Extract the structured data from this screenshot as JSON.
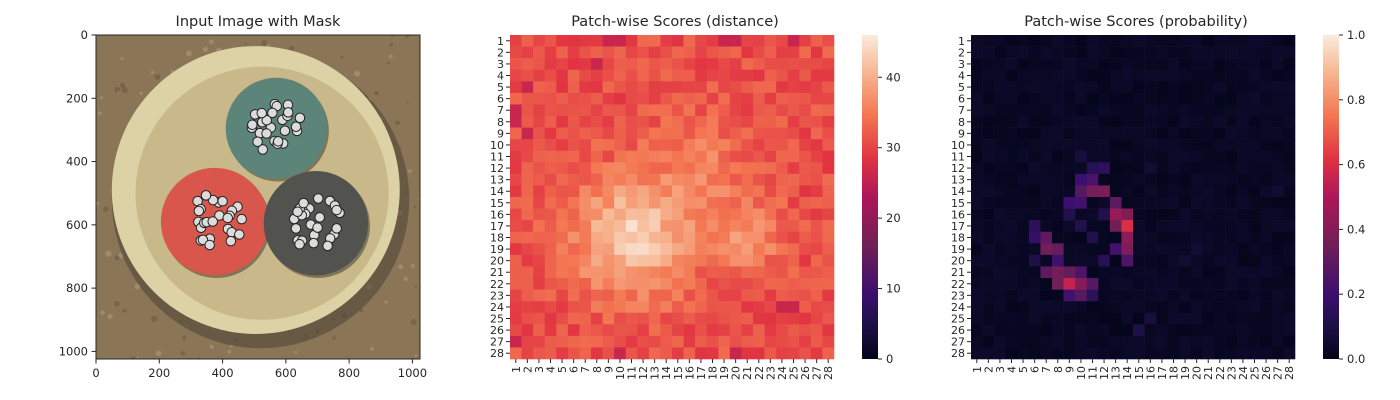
{
  "chart_data": [
    {
      "type": "image",
      "title": "Input Image with Mask",
      "xticks": [
        "0",
        "200",
        "400",
        "600",
        "800",
        "1000"
      ],
      "yticks": [
        "0",
        "200",
        "400",
        "600",
        "800",
        "1000"
      ],
      "xlim": [
        0,
        1024
      ],
      "ylim": [
        1024,
        0
      ],
      "image": {
        "background_color": "#8a7657",
        "dish_color": "#ddd2a5",
        "inner_disc_color": "#c9b98a",
        "cables": [
          {
            "name": "green",
            "color": "#5d8478",
            "cx": 570,
            "cy": 295,
            "r": 160
          },
          {
            "name": "red",
            "color": "#d9564c",
            "cx": 375,
            "cy": 590,
            "r": 170
          },
          {
            "name": "gray",
            "color": "#52534f",
            "cx": 695,
            "cy": 595,
            "r": 165
          }
        ]
      }
    },
    {
      "type": "heatmap",
      "title": "Patch-wise Scores (distance)",
      "xticks": [
        "1",
        "2",
        "3",
        "4",
        "5",
        "6",
        "7",
        "8",
        "9",
        "10",
        "11",
        "12",
        "13",
        "14",
        "15",
        "16",
        "17",
        "18",
        "19",
        "20",
        "21",
        "22",
        "23",
        "24",
        "25",
        "26",
        "27",
        "28"
      ],
      "yticks": [
        "1",
        "2",
        "3",
        "4",
        "5",
        "6",
        "7",
        "8",
        "9",
        "10",
        "11",
        "12",
        "13",
        "14",
        "15",
        "16",
        "17",
        "18",
        "19",
        "20",
        "21",
        "22",
        "23",
        "24",
        "25",
        "26",
        "27",
        "28"
      ],
      "colorbar": {
        "ticks": [
          "0",
          "10",
          "20",
          "30",
          "40"
        ],
        "min": 0,
        "max": 46
      },
      "pattern": {
        "base": 31,
        "hotspots": [
          {
            "row": 18,
            "col": 11,
            "peak": 12,
            "sigma": 3.5
          },
          {
            "row": 18,
            "col": 21,
            "peak": 6,
            "sigma": 2.2
          },
          {
            "row": 12,
            "col": 17,
            "peak": 4,
            "sigma": 3.0
          }
        ],
        "cold_cells": [
          [
            1,
            9
          ],
          [
            1,
            10
          ],
          [
            1,
            19
          ],
          [
            1,
            20
          ],
          [
            1,
            25
          ],
          [
            3,
            8
          ],
          [
            5,
            2
          ],
          [
            7,
            1
          ],
          [
            8,
            1
          ],
          [
            9,
            2
          ],
          [
            24,
            24
          ],
          [
            24,
            25
          ],
          [
            27,
            1
          ],
          [
            28,
            10
          ],
          [
            28,
            20
          ]
        ],
        "cold_value": 26
      }
    },
    {
      "type": "heatmap",
      "title": "Patch-wise Scores (probability)",
      "xticks": [
        "1",
        "2",
        "3",
        "4",
        "5",
        "6",
        "7",
        "8",
        "9",
        "10",
        "11",
        "12",
        "13",
        "14",
        "15",
        "16",
        "17",
        "18",
        "19",
        "20",
        "21",
        "22",
        "23",
        "24",
        "25",
        "26",
        "27",
        "28"
      ],
      "yticks": [
        "1",
        "2",
        "3",
        "4",
        "5",
        "6",
        "7",
        "8",
        "9",
        "10",
        "11",
        "12",
        "13",
        "14",
        "15",
        "16",
        "17",
        "18",
        "19",
        "20",
        "21",
        "22",
        "23",
        "24",
        "25",
        "26",
        "27",
        "28"
      ],
      "colorbar": {
        "ticks": [
          "0.0",
          "0.2",
          "0.4",
          "0.6",
          "0.8",
          "1.0"
        ],
        "min": 0,
        "max": 1
      },
      "cells": [
        [
          13,
          10,
          0.2
        ],
        [
          13,
          11,
          0.24
        ],
        [
          14,
          10,
          0.28
        ],
        [
          14,
          11,
          0.36
        ],
        [
          14,
          12,
          0.38
        ],
        [
          15,
          9,
          0.2
        ],
        [
          15,
          10,
          0.22
        ],
        [
          15,
          13,
          0.3
        ],
        [
          16,
          13,
          0.45
        ],
        [
          16,
          14,
          0.4
        ],
        [
          17,
          14,
          0.6
        ],
        [
          17,
          13,
          0.35
        ],
        [
          17,
          6,
          0.15
        ],
        [
          18,
          6,
          0.18
        ],
        [
          18,
          7,
          0.3
        ],
        [
          18,
          14,
          0.42
        ],
        [
          19,
          7,
          0.35
        ],
        [
          19,
          8,
          0.32
        ],
        [
          19,
          14,
          0.38
        ],
        [
          19,
          13,
          0.22
        ],
        [
          20,
          8,
          0.22
        ],
        [
          20,
          14,
          0.25
        ],
        [
          21,
          7,
          0.3
        ],
        [
          21,
          8,
          0.36
        ],
        [
          21,
          9,
          0.32
        ],
        [
          21,
          10,
          0.25
        ],
        [
          22,
          8,
          0.35
        ],
        [
          22,
          9,
          0.55
        ],
        [
          22,
          10,
          0.4
        ],
        [
          22,
          11,
          0.28
        ],
        [
          23,
          9,
          0.22
        ],
        [
          23,
          10,
          0.28
        ],
        [
          23,
          11,
          0.15
        ],
        [
          12,
          11,
          0.14
        ],
        [
          12,
          12,
          0.16
        ],
        [
          16,
          9,
          0.12
        ],
        [
          17,
          10,
          0.12
        ],
        [
          20,
          12,
          0.14
        ],
        [
          18,
          11,
          0.12
        ],
        [
          11,
          10,
          0.08
        ],
        [
          12,
          16,
          0.06
        ],
        [
          25,
          16,
          0.08
        ],
        [
          26,
          15,
          0.1
        ],
        [
          20,
          19,
          0.06
        ],
        [
          19,
          20,
          0.06
        ],
        [
          14,
          27,
          0.06
        ],
        [
          20,
          6,
          0.1
        ],
        [
          16,
          12,
          0.12
        ]
      ]
    }
  ]
}
